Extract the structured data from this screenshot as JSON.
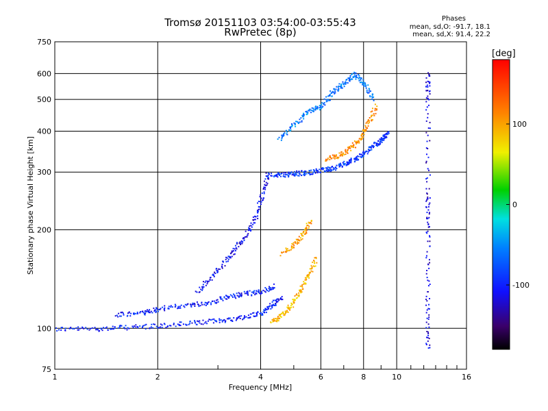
{
  "header": {
    "title_line1": "Tromsø 20151103 03:54:00-03:55:43",
    "title_line2": "RwPretec (8p)",
    "stats_title": "Phases",
    "stats_o": "mean, sd,O: -91.7, 18.1",
    "stats_x": "mean, sd,X:  91.4, 22.2"
  },
  "chart_data": {
    "type": "scatter",
    "xlabel": "Frequency [MHz]",
    "ylabel": "Stationary phase Virtual Height [km]",
    "xscale": "log",
    "yscale": "log",
    "xlim": [
      1,
      16
    ],
    "ylim": [
      75,
      750
    ],
    "xticks": [
      1,
      2,
      4,
      6,
      8,
      10,
      16
    ],
    "xtick_labels": [
      "1",
      "2",
      "4",
      "6",
      "8",
      "10",
      "16"
    ],
    "yticks": [
      75,
      100,
      200,
      300,
      400,
      500,
      600,
      750
    ],
    "ytick_labels": [
      "75",
      "100",
      "200",
      "300",
      "400",
      "500",
      "600",
      "750"
    ],
    "grid": true,
    "colorbar": {
      "label": "[deg]",
      "range": [
        -180,
        180
      ],
      "ticks": [
        100,
        0,
        -100
      ],
      "tick_labels": [
        "100",
        "0",
        "-100"
      ]
    },
    "traces": [
      {
        "desc": "O-mode low trace",
        "x": [
          1.0,
          1.3,
          1.6,
          2.0,
          2.5,
          3.0,
          3.5,
          4.0,
          4.3,
          4.6
        ],
        "y": [
          100,
          100,
          101,
          102,
          104,
          106,
          108,
          112,
          118,
          125
        ],
        "phase": -100
      },
      {
        "desc": "O-mode trace 2",
        "x": [
          1.5,
          1.8,
          2.0,
          2.4,
          2.8,
          3.2,
          3.6,
          4.0,
          4.4
        ],
        "y": [
          110,
          112,
          115,
          118,
          120,
          125,
          128,
          130,
          135
        ],
        "phase": -100
      },
      {
        "desc": "O-mode rising trace",
        "x": [
          2.6,
          2.9,
          3.2,
          3.5,
          3.8,
          4.0,
          4.2
        ],
        "y": [
          130,
          145,
          165,
          185,
          210,
          250,
          300
        ],
        "phase": -110
      },
      {
        "desc": "O-mode F2 trace",
        "x": [
          4.2,
          4.6,
          5.0,
          5.5,
          6.0,
          6.5,
          7.0,
          7.5,
          8.0,
          8.6,
          9.0,
          9.4
        ],
        "y": [
          295,
          295,
          298,
          300,
          305,
          310,
          320,
          330,
          345,
          365,
          380,
          395
        ],
        "phase": -90
      },
      {
        "desc": "X-mode trace",
        "x": [
          4.3,
          4.6,
          4.9,
          5.2,
          5.5,
          5.8
        ],
        "y": [
          105,
          110,
          118,
          130,
          145,
          165
        ],
        "phase": 90
      },
      {
        "desc": "X-mode upper trace",
        "x": [
          4.6,
          5.0,
          5.3,
          5.6
        ],
        "y": [
          170,
          180,
          195,
          215
        ],
        "phase": 100
      },
      {
        "desc": "X-mode F2 trace",
        "x": [
          6.2,
          6.8,
          7.3,
          7.8,
          8.2,
          8.7
        ],
        "y": [
          330,
          340,
          355,
          380,
          420,
          480
        ],
        "phase": 110
      },
      {
        "desc": "spread F",
        "x": [
          4.5,
          5.0,
          5.5,
          6.0,
          6.5,
          7.0,
          7.5,
          8.0,
          8.5
        ],
        "y": [
          380,
          420,
          460,
          480,
          530,
          560,
          600,
          560,
          500
        ],
        "phase": -60
      },
      {
        "desc": "column near 12 MHz",
        "x": [
          12.3,
          12.3,
          12.3,
          12.3,
          12.3,
          12.3
        ],
        "y": [
          600,
          500,
          260,
          200,
          120,
          85
        ],
        "phase": -120
      }
    ]
  }
}
